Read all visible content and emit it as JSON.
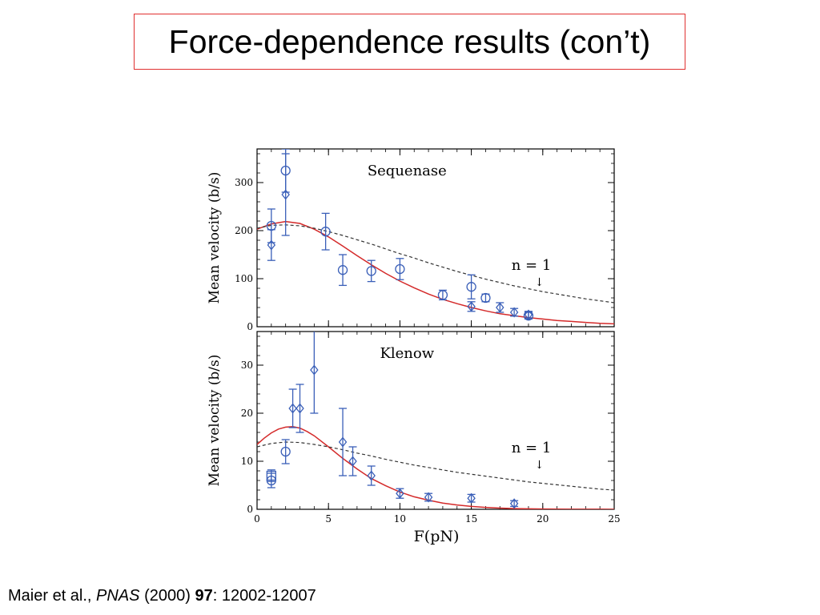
{
  "slide": {
    "title": "Force-dependence results (con’t)"
  },
  "citation": {
    "authors": "Maier et al., ",
    "journal": "PNAS",
    "year": " (2000) ",
    "volume": "97",
    "pages": ": 12002-12007"
  },
  "colors": {
    "data": "#3a5fb8",
    "fit": "#d42a2a",
    "reference": "#333333",
    "frame": "#000000"
  },
  "chart_data": [
    {
      "type": "scatter",
      "title": "Sequenase",
      "ylabel": "Mean velocity (b/s)",
      "xlabel": "",
      "xlim": [
        0,
        25
      ],
      "ylim": [
        0,
        370
      ],
      "yticks": [
        0,
        100,
        200,
        300
      ],
      "xticks": [
        0,
        5,
        10,
        15,
        20,
        25
      ],
      "show_x_tick_labels": false,
      "annotation": {
        "text": "n = 1",
        "arrow": "↓",
        "x": 19.2,
        "y": 95
      },
      "series": [
        {
          "marker": "circle",
          "points": [
            {
              "x": 1.0,
              "y": 210,
              "err": 35
            },
            {
              "x": 2.0,
              "y": 325,
              "err": 45
            },
            {
              "x": 4.8,
              "y": 198,
              "err": 38
            },
            {
              "x": 6.0,
              "y": 118,
              "err": 32
            },
            {
              "x": 8.0,
              "y": 116,
              "err": 22
            },
            {
              "x": 10.0,
              "y": 120,
              "err": 22
            },
            {
              "x": 13.0,
              "y": 66,
              "err": 10
            },
            {
              "x": 15.0,
              "y": 83,
              "err": 25
            },
            {
              "x": 16.0,
              "y": 60,
              "err": 8
            },
            {
              "x": 19.0,
              "y": 23,
              "err": 7
            }
          ]
        },
        {
          "marker": "diamond",
          "points": [
            {
              "x": 1.0,
              "y": 170,
              "err": 32
            },
            {
              "x": 2.0,
              "y": 275,
              "err": 85
            },
            {
              "x": 15.0,
              "y": 42,
              "err": 10
            },
            {
              "x": 17.0,
              "y": 40,
              "err": 10
            },
            {
              "x": 18.0,
              "y": 30,
              "err": 8
            },
            {
              "x": 19.0,
              "y": 25,
              "err": 7
            }
          ]
        }
      ],
      "curves": [
        {
          "style": "solid-red",
          "x": [
            0,
            1,
            2,
            3,
            4,
            5,
            6,
            7,
            8,
            9,
            10,
            11,
            12,
            13,
            14,
            15,
            16,
            17,
            18,
            19,
            20,
            21,
            22,
            23,
            24,
            25
          ],
          "y": [
            203,
            214,
            219,
            215,
            203,
            187,
            168,
            148,
            129,
            111,
            95,
            81,
            68,
            57,
            48,
            40,
            33,
            27,
            23,
            19,
            16,
            13,
            11,
            9,
            7,
            6
          ]
        },
        {
          "style": "dashed",
          "x": [
            0,
            1,
            2,
            3,
            4,
            5,
            6,
            7,
            8,
            9,
            10,
            11,
            12,
            13,
            14,
            15,
            16,
            17,
            18,
            19,
            20,
            21,
            22,
            23,
            24,
            25
          ],
          "y": [
            205,
            211,
            212,
            210,
            205,
            198,
            190,
            181,
            172,
            162,
            152,
            143,
            133,
            124,
            115,
            107,
            99,
            92,
            85,
            79,
            73,
            68,
            63,
            58,
            54,
            50
          ]
        }
      ]
    },
    {
      "type": "scatter",
      "title": "Klenow",
      "ylabel": "Mean velocity (b/s)",
      "xlabel": "F(pN)",
      "xlim": [
        0,
        25
      ],
      "ylim": [
        0,
        37
      ],
      "yticks": [
        0,
        10,
        20,
        30
      ],
      "xticks": [
        0,
        5,
        10,
        15,
        20,
        25
      ],
      "show_x_tick_labels": true,
      "annotation": {
        "text": "n = 1",
        "arrow": "↓",
        "x": 19.2,
        "y": 9.5
      },
      "series": [
        {
          "marker": "circle",
          "points": [
            {
              "x": 1.0,
              "y": 6,
              "err": 1.5
            },
            {
              "x": 2.0,
              "y": 12,
              "err": 2.5
            }
          ]
        },
        {
          "marker": "square",
          "points": [
            {
              "x": 1.0,
              "y": 7,
              "err": 1.2
            }
          ]
        },
        {
          "marker": "diamond",
          "points": [
            {
              "x": 2.5,
              "y": 21,
              "err": 4
            },
            {
              "x": 3.0,
              "y": 21,
              "err": 5
            },
            {
              "x": 4.0,
              "y": 29,
              "err": 9
            },
            {
              "x": 6.0,
              "y": 14,
              "err": 7
            },
            {
              "x": 6.7,
              "y": 10,
              "err": 3
            },
            {
              "x": 8.0,
              "y": 7,
              "err": 2
            },
            {
              "x": 10.0,
              "y": 3.3,
              "err": 1
            },
            {
              "x": 12.0,
              "y": 2.5,
              "err": 0.8
            },
            {
              "x": 15.0,
              "y": 2.3,
              "err": 0.8
            },
            {
              "x": 18.0,
              "y": 1.2,
              "err": 0.6
            }
          ]
        }
      ],
      "curves": [
        {
          "style": "solid-red",
          "x": [
            0,
            0.5,
            1,
            1.5,
            2,
            2.5,
            3,
            3.5,
            4,
            5,
            6,
            7,
            8,
            9,
            10,
            11,
            12,
            13,
            14,
            15,
            16,
            17,
            18,
            19,
            20,
            21,
            22,
            23,
            24,
            25
          ],
          "y": [
            13.5,
            14.8,
            15.9,
            16.7,
            17.1,
            17.2,
            16.9,
            16.2,
            15.3,
            13.0,
            10.6,
            8.4,
            6.4,
            4.9,
            3.6,
            2.6,
            1.9,
            1.3,
            0.9,
            0.6,
            0.4,
            0.25,
            0.15,
            0.1,
            0.06,
            0.04,
            0.02,
            0.01,
            0.01,
            0
          ]
        },
        {
          "style": "dashed",
          "x": [
            0,
            1,
            2,
            3,
            4,
            5,
            6,
            7,
            8,
            9,
            10,
            11,
            12,
            13,
            14,
            15,
            16,
            17,
            18,
            19,
            20,
            21,
            22,
            23,
            24,
            25
          ],
          "y": [
            13.0,
            13.7,
            14.0,
            13.9,
            13.5,
            13.0,
            12.4,
            11.7,
            11.1,
            10.4,
            9.8,
            9.2,
            8.7,
            8.2,
            7.7,
            7.3,
            6.9,
            6.5,
            6.1,
            5.7,
            5.4,
            5.1,
            4.8,
            4.5,
            4.2,
            4.0
          ]
        }
      ]
    }
  ]
}
